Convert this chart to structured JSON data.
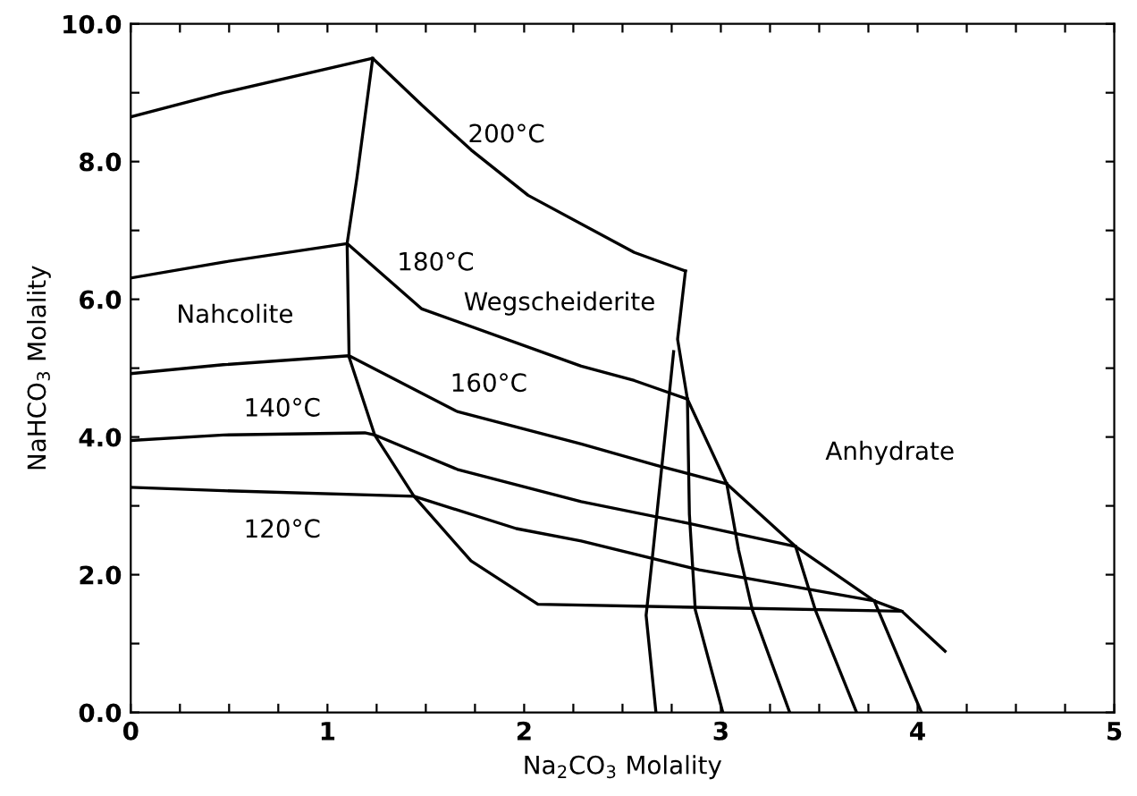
{
  "chart_data": {
    "type": "line",
    "xlabel": "Na$_{2}$CO$_{3}$ Molality",
    "ylabel": "NaHCO$_{3}$ Molality",
    "xlim": [
      0,
      5
    ],
    "ylim": [
      0,
      10
    ],
    "xticks": [
      0,
      {
        "value": 0.25,
        "label": null
      },
      {
        "value": 0.5,
        "label": null
      },
      {
        "value": 0.75,
        "label": null
      },
      1,
      {
        "value": 1.25,
        "label": null
      },
      {
        "value": 1.5,
        "label": null
      },
      {
        "value": 1.75,
        "label": null
      },
      2,
      {
        "value": 2.25,
        "label": null
      },
      {
        "value": 2.5,
        "label": null
      },
      {
        "value": 2.75,
        "label": null
      },
      3,
      {
        "value": 3.25,
        "label": null
      },
      {
        "value": 3.5,
        "label": null
      },
      {
        "value": 3.75,
        "label": null
      },
      4,
      {
        "value": 4.25,
        "label": null
      },
      {
        "value": 4.5,
        "label": null
      },
      {
        "value": 4.75,
        "label": null
      },
      5
    ],
    "yticks": [
      {
        "value": 0,
        "label": "0.0"
      },
      {
        "value": 1,
        "label": null
      },
      {
        "value": 2,
        "label": "2.0"
      },
      {
        "value": 3,
        "label": null
      },
      {
        "value": 4,
        "label": "4.0"
      },
      {
        "value": 5,
        "label": null
      },
      {
        "value": 6,
        "label": "6.0"
      },
      {
        "value": 7,
        "label": null
      },
      {
        "value": 8,
        "label": "8.0"
      },
      {
        "value": 9,
        "label": null
      },
      {
        "value": 10,
        "label": "10.0"
      }
    ],
    "grid": false,
    "marker": "none",
    "line_style": "solid",
    "series": [
      {
        "color": "#000000",
        "x": [
          0,
          0.47,
          1.23,
          1.48,
          1.73,
          2.02,
          2.56,
          2.82
        ],
        "values": [
          8.65,
          9.0,
          9.5,
          8.82,
          8.17,
          7.51,
          6.68,
          6.41
        ]
      },
      {
        "color": "#000000",
        "x": [
          0,
          0.47,
          1.1,
          1.48,
          2.29,
          2.56,
          2.83
        ],
        "values": [
          6.31,
          6.54,
          6.81,
          5.86,
          5.03,
          4.82,
          4.55
        ]
      },
      {
        "color": "#000000",
        "x": [
          0,
          0.47,
          1.11,
          1.66,
          2.29,
          2.67,
          3.03
        ],
        "values": [
          4.92,
          5.05,
          5.18,
          4.37,
          3.9,
          3.59,
          3.32
        ]
      },
      {
        "color": "#000000",
        "x": [
          0,
          0.47,
          1.19,
          1.24,
          1.66,
          2.29,
          2.83,
          3.38
        ],
        "values": [
          3.95,
          4.03,
          4.06,
          4.03,
          3.53,
          3.06,
          2.75,
          2.41
        ]
      },
      {
        "color": "#000000",
        "x": [
          0,
          0.47,
          1.44,
          1.96,
          2.29,
          2.89,
          3.78
        ],
        "values": [
          3.27,
          3.22,
          3.14,
          2.67,
          2.49,
          2.07,
          1.62
        ]
      },
      {
        "color": "#000000",
        "x": [
          1.23,
          1.15,
          1.1,
          1.11,
          1.24,
          1.44,
          1.73,
          2.07,
          3.92,
          4.14
        ],
        "values": [
          9.5,
          7.77,
          6.81,
          5.16,
          4.03,
          3.14,
          2.2,
          1.57,
          1.47,
          0.89
        ]
      },
      {
        "color": "#000000",
        "x": [
          2.82,
          2.78,
          2.83,
          3.03,
          3.38,
          3.78,
          3.92
        ],
        "values": [
          6.41,
          5.42,
          4.55,
          3.32,
          2.41,
          1.62,
          1.47
        ]
      },
      {
        "color": "#000000",
        "x": [
          2.76,
          2.71,
          2.65,
          2.62,
          2.67
        ],
        "values": [
          5.24,
          3.85,
          2.2,
          1.41,
          0
        ]
      },
      {
        "color": "#000000",
        "x": [
          2.83,
          2.84,
          2.87,
          3.01
        ],
        "values": [
          4.55,
          2.88,
          1.49,
          0
        ]
      },
      {
        "color": "#000000",
        "x": [
          3.03,
          3.09,
          3.16,
          3.35
        ],
        "values": [
          3.32,
          2.36,
          1.49,
          0
        ]
      },
      {
        "color": "#000000",
        "x": [
          3.38,
          3.48,
          3.69
        ],
        "values": [
          2.41,
          1.49,
          0
        ]
      },
      {
        "color": "#000000",
        "x": [
          3.78,
          4.02
        ],
        "values": [
          1.62,
          0
        ]
      }
    ],
    "annotations": [
      "200°C",
      "180°C",
      "160°C",
      "140°C",
      "120°C",
      "Nahcolite",
      "Wegscheiderite",
      "Anhydrate"
    ]
  }
}
